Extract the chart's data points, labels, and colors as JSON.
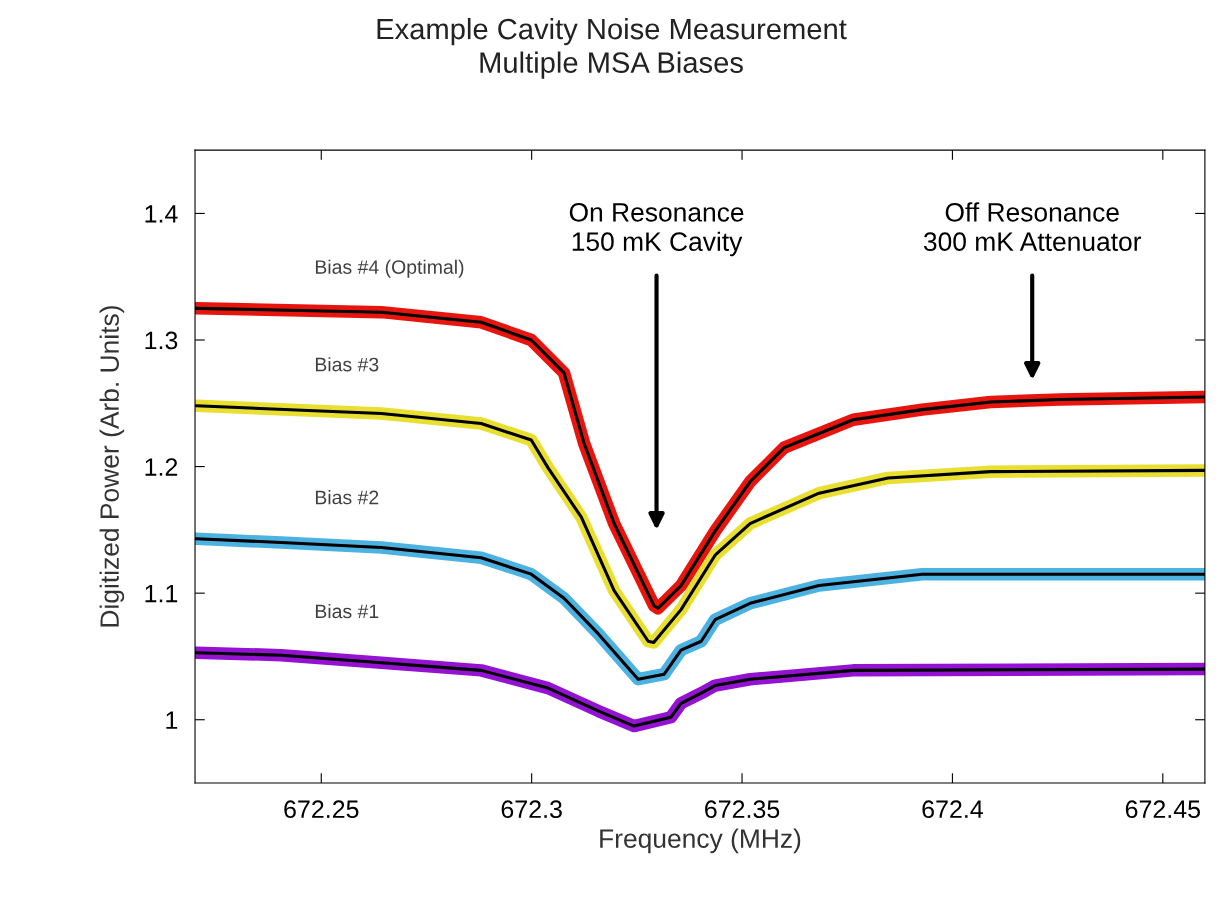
{
  "chart_data": {
    "type": "line",
    "title": "Example Cavity Noise Measurement\nMultiple MSA Biases",
    "xlabel": "Frequency (MHz)",
    "ylabel": "Digitized Power (Arb. Units)",
    "xlim": [
      672.22,
      672.46
    ],
    "xticks": [
      672.25,
      672.3,
      672.35,
      672.4,
      672.45
    ],
    "ylim": [
      0.95,
      1.45
    ],
    "yticks": [
      1,
      1.1,
      1.2,
      1.3,
      1.4
    ],
    "grid": false,
    "legend": false,
    "marker": "none",
    "line_style": "solid",
    "annotations": [
      "On Resonance\n150 mK Cavity",
      "Off Resonance\n300 mK Attenuator"
    ],
    "series": [
      {
        "name": "Bias #4 (Optimal)",
        "color": "#e8150f",
        "x": [
          672.2203,
          672.2643,
          672.288,
          672.2999,
          672.3077,
          672.3125,
          672.3196,
          672.3291,
          672.33,
          672.3355,
          672.3436,
          672.3519,
          672.36,
          672.3764,
          672.3928,
          672.4091,
          672.4255,
          672.46
        ],
        "values": [
          1.325,
          1.322,
          1.314,
          1.3,
          1.274,
          1.218,
          1.155,
          1.09,
          1.088,
          1.106,
          1.149,
          1.188,
          1.215,
          1.237,
          1.245,
          1.251,
          1.253,
          1.255
        ]
      },
      {
        "name": "Bias #3",
        "color": "#e8df30",
        "x": [
          672.2203,
          672.2643,
          672.288,
          672.2999,
          672.3039,
          672.3118,
          672.3196,
          672.3277,
          672.329,
          672.3355,
          672.3436,
          672.3519,
          672.3683,
          672.3847,
          672.4091,
          672.46
        ],
        "values": [
          1.248,
          1.242,
          1.234,
          1.221,
          1.199,
          1.16,
          1.102,
          1.062,
          1.061,
          1.087,
          1.13,
          1.155,
          1.179,
          1.191,
          1.196,
          1.197
        ]
      },
      {
        "name": "Bias #2",
        "color": "#4cb2e2",
        "x": [
          672.2203,
          672.2405,
          672.2643,
          672.288,
          672.2999,
          672.3077,
          672.3158,
          672.3253,
          672.3315,
          672.3355,
          672.3403,
          672.3436,
          672.3519,
          672.3683,
          672.3928,
          672.4175,
          672.46
        ],
        "values": [
          1.143,
          1.14,
          1.136,
          1.128,
          1.115,
          1.096,
          1.068,
          1.032,
          1.036,
          1.055,
          1.062,
          1.079,
          1.092,
          1.106,
          1.115,
          1.115,
          1.115
        ]
      },
      {
        "name": "Bias #1",
        "color": "#9412d2",
        "x": [
          672.2203,
          672.2405,
          672.2643,
          672.288,
          672.3039,
          672.3158,
          672.3243,
          672.3331,
          672.3355,
          672.3403,
          672.3436,
          672.3519,
          672.3764,
          672.46
        ],
        "values": [
          1.053,
          1.051,
          1.045,
          1.039,
          1.025,
          1.007,
          0.995,
          1.002,
          1.013,
          1.021,
          1.027,
          1.032,
          1.039,
          1.04
        ]
      },
      {
        "color": "#000000",
        "x": [
          672.2203,
          672.2643,
          672.288,
          672.2999,
          672.3077,
          672.3125,
          672.3196,
          672.3291,
          672.33,
          672.3355,
          672.3436,
          672.3519,
          672.36,
          672.3764,
          672.3928,
          672.4091,
          672.4255,
          672.46
        ],
        "values": [
          1.325,
          1.322,
          1.314,
          1.3,
          1.274,
          1.218,
          1.155,
          1.09,
          1.088,
          1.106,
          1.149,
          1.188,
          1.215,
          1.237,
          1.245,
          1.251,
          1.253,
          1.255
        ]
      },
      {
        "color": "#000000",
        "x": [
          672.2203,
          672.2643,
          672.288,
          672.2999,
          672.3039,
          672.3118,
          672.3196,
          672.3277,
          672.329,
          672.3355,
          672.3436,
          672.3519,
          672.3683,
          672.3847,
          672.4091,
          672.46
        ],
        "values": [
          1.248,
          1.242,
          1.234,
          1.221,
          1.199,
          1.16,
          1.102,
          1.062,
          1.061,
          1.087,
          1.13,
          1.155,
          1.179,
          1.191,
          1.196,
          1.197
        ]
      },
      {
        "color": "#000000",
        "x": [
          672.2203,
          672.2405,
          672.2643,
          672.288,
          672.2999,
          672.3077,
          672.3158,
          672.3253,
          672.3315,
          672.3355,
          672.3403,
          672.3436,
          672.3519,
          672.3683,
          672.3928,
          672.4175,
          672.46
        ],
        "values": [
          1.143,
          1.14,
          1.136,
          1.128,
          1.115,
          1.096,
          1.068,
          1.032,
          1.036,
          1.055,
          1.062,
          1.079,
          1.092,
          1.106,
          1.115,
          1.115,
          1.115
        ]
      },
      {
        "color": "#000000",
        "x": [
          672.2203,
          672.2405,
          672.2643,
          672.288,
          672.3039,
          672.3158,
          672.3243,
          672.3331,
          672.3355,
          672.3403,
          672.3436,
          672.3519,
          672.3764,
          672.46
        ],
        "values": [
          1.053,
          1.051,
          1.045,
          1.039,
          1.025,
          1.007,
          0.995,
          1.002,
          1.013,
          1.021,
          1.027,
          1.032,
          1.039,
          1.04
        ]
      }
    ]
  }
}
